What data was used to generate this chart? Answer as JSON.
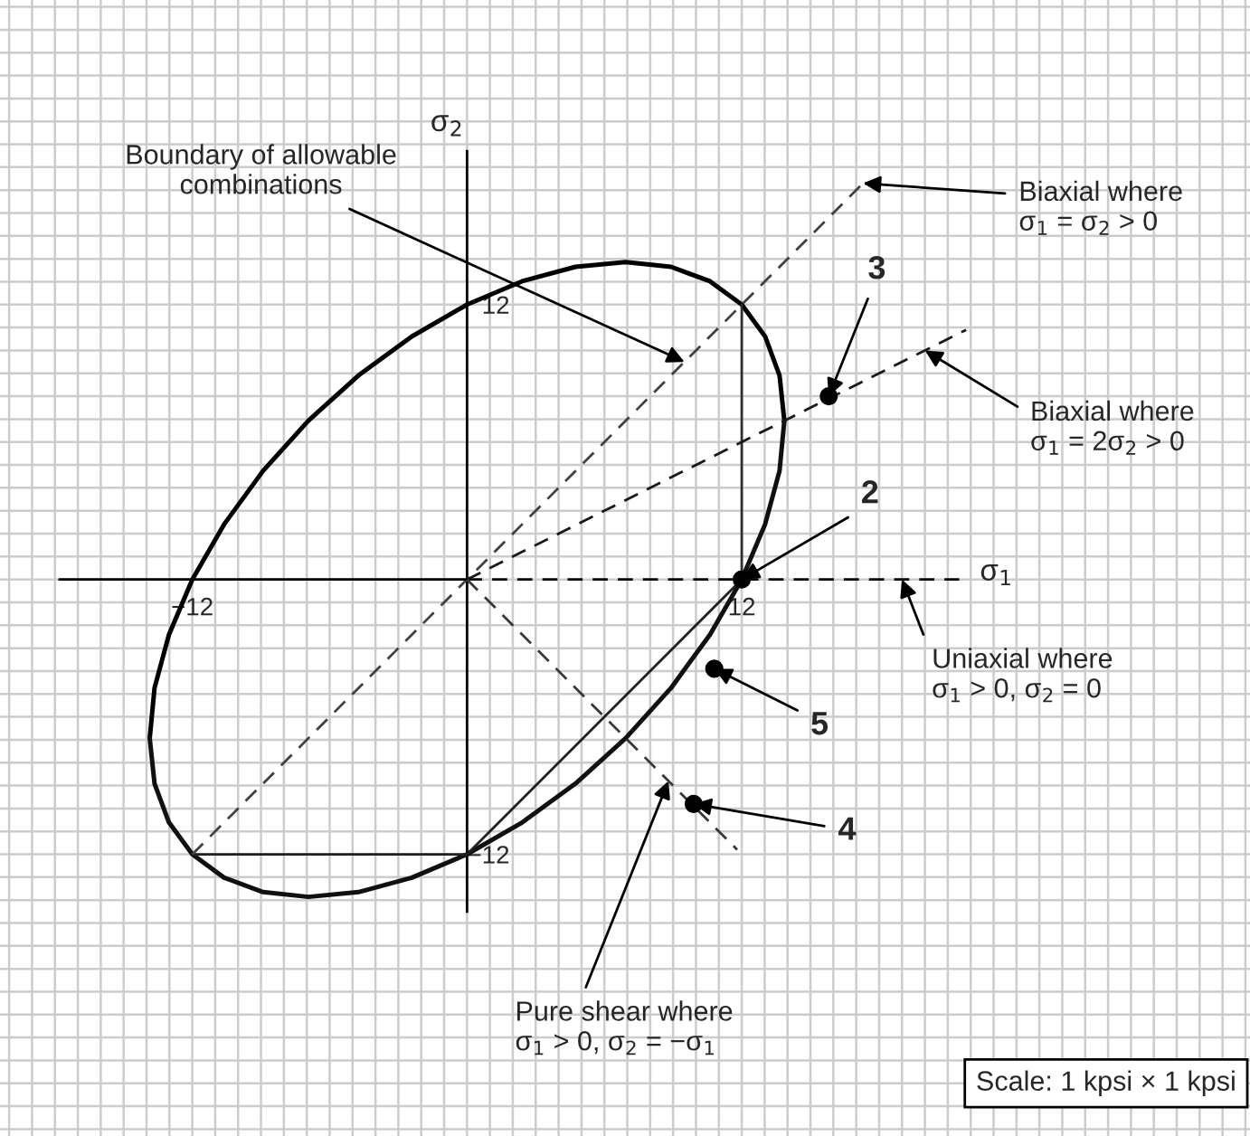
{
  "chart_data": {
    "type": "line",
    "xlabel": "σ$_{1}$",
    "ylabel": "σ$_{2}$",
    "xlim": [
      -20.4,
      34.2
    ],
    "ylim": [
      -24.3,
      25.3
    ],
    "xticks": [
      {
        "value": -12,
        "label": "−12"
      },
      12
    ],
    "yticks": [
      {
        "value": -12,
        "label": "−12"
      },
      12
    ],
    "grid": true,
    "series": [
      {
        "type": "line",
        "color": "#000000",
        "line_style": "solid",
        "x": [
          -13.86,
          -13.65,
          -13.02,
          -12,
          -10.61,
          -8.91,
          -6.93,
          -4.74,
          -2.41,
          0,
          2.41,
          4.74,
          6.93,
          8.91,
          10.61,
          12,
          13.02,
          13.65,
          13.86
        ],
        "values": [
          -6.93,
          -4.74,
          -2.41,
          0,
          2.41,
          4.74,
          6.93,
          8.91,
          10.61,
          12,
          13.02,
          13.65,
          13.86,
          13.65,
          13.02,
          12,
          10.61,
          8.91,
          6.93
        ]
      },
      {
        "type": "line",
        "color": "#101010",
        "line_style": "solid",
        "x": [
          -13.86,
          -13.65,
          -13.02,
          -12,
          -10.61,
          -8.91,
          -6.93,
          -4.74,
          -2.41,
          0,
          2.41,
          4.74,
          6.93,
          8.91,
          10.61,
          12,
          13.02,
          13.65,
          13.86
        ],
        "values": [
          -6.93,
          -8.91,
          -10.61,
          -12,
          -13.02,
          -13.65,
          -13.86,
          -13.65,
          -13.02,
          -12,
          -10.61,
          -8.91,
          -6.93,
          -4.74,
          -2.41,
          0,
          2.41,
          4.74,
          6.93
        ]
      },
      {
        "type": "line",
        "color": "#303030",
        "line_style": "solid",
        "x": [
          12,
          12
        ],
        "values": [
          0,
          12
        ]
      },
      {
        "type": "line",
        "color": "#202020",
        "line_style": "solid",
        "x": [
          -12,
          0,
          12
        ],
        "values": [
          -12,
          -12,
          0
        ]
      },
      {
        "type": "line",
        "color": "#404040",
        "line_style": "dashed",
        "x": [
          -12,
          17.3
        ],
        "values": [
          -12,
          17.3
        ]
      },
      {
        "type": "line",
        "color": "#181818",
        "line_style": "dashed",
        "x": [
          0,
          21.8
        ],
        "values": [
          0,
          10.9
        ]
      },
      {
        "type": "line",
        "color": "#080808",
        "line_style": "dashed",
        "x": [
          0,
          21.5
        ],
        "values": [
          0,
          0
        ]
      },
      {
        "type": "line",
        "color": "#000000",
        "line_style": "solid",
        "x": [
          -17.8,
          0
        ],
        "values": [
          0,
          0
        ]
      },
      {
        "type": "line",
        "color": "#383838",
        "line_style": "dashed",
        "x": [
          0,
          11.8
        ],
        "values": [
          0,
          -11.8
        ]
      },
      {
        "type": "scatter",
        "color": "#000000",
        "marker": "circle",
        "x": [
          12,
          15.8,
          9.9,
          10.8
        ],
        "values": [
          0,
          8,
          -9.8,
          -3.9
        ]
      }
    ],
    "annotations": [
      {
        "text": "Boundary of allowable\ncombinations",
        "x": 9.5,
        "y": 9.5
      },
      {
        "text": "Biaxial where\nσ$_{1}$ = σ$_{2}$ > 0",
        "x": 17.3,
        "y": 17.3
      },
      {
        "text": "Biaxial where\nσ$_{1}$ = 2σ$_{2}$ > 0",
        "x": 20,
        "y": 10
      },
      {
        "text": "Uniaxial where\nσ$_{1}$ > 0, σ$_{2}$ = 0",
        "x": 19,
        "y": 0
      },
      {
        "text": "Pure shear where\nσ$_{1}$ > 0, σ$_{2}$ = −σ$_{1}$",
        "x": 8.8,
        "y": -8.8
      },
      {
        "text": "2",
        "x": 12,
        "y": 0
      },
      {
        "text": "3",
        "x": 15.8,
        "y": 8
      },
      {
        "text": "4",
        "x": 9.9,
        "y": -9.8
      },
      {
        "text": "5",
        "x": 10.8,
        "y": -3.9
      },
      "Scale: 1 kpsi × 1 kpsi"
    ]
  }
}
